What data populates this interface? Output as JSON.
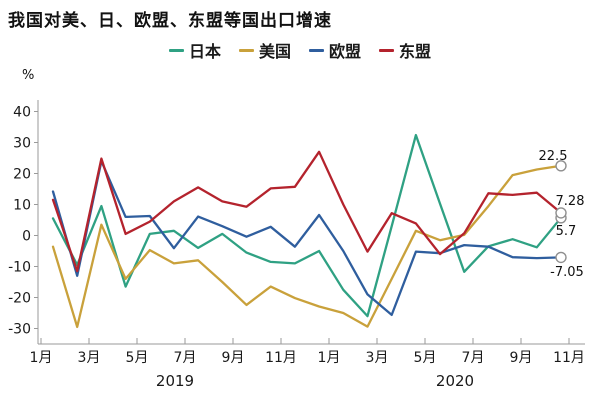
{
  "chart_data": {
    "type": "line",
    "title": "我国对美、日、欧盟、东盟等国出口增速",
    "ylabel": "%",
    "ylim": [
      -30,
      40
    ],
    "yticks": [
      40,
      30,
      20,
      10,
      0,
      -10,
      -20,
      -30
    ],
    "x_tick_labels": [
      "1月",
      "3月",
      "5月",
      "7月",
      "9月",
      "11月",
      "1月",
      "3月",
      "5月",
      "7月",
      "9月",
      "11月"
    ],
    "year_labels": [
      "2019",
      "2020"
    ],
    "categories": [
      "2019-1月",
      "2019-2月",
      "2019-3月",
      "2019-4月",
      "2019-5月",
      "2019-6月",
      "2019-7月",
      "2019-8月",
      "2019-9月",
      "2019-10月",
      "2019-11月",
      "2019-12月",
      "2020-1月",
      "2020-3月",
      "2020-4月",
      "2020-5月",
      "2020-6月",
      "2020-7月",
      "2020-8月",
      "2020-9月",
      "2020-10月",
      "2020-11月"
    ],
    "legend_position": "top",
    "grid": false,
    "series": [
      {
        "name": "日本",
        "name_en": "japan",
        "color": "#2fa183",
        "end_label": "5.7",
        "values": [
          5.5,
          -9.5,
          9.5,
          -16.5,
          0.5,
          1.5,
          -4,
          0.5,
          -5.5,
          -8.5,
          -9,
          -5,
          -17.5,
          -26,
          3,
          32.4,
          10.3,
          -11.7,
          -3.5,
          -1.2,
          -3.8,
          5.7
        ]
      },
      {
        "name": "美国",
        "name_en": "us",
        "color": "#c9a13b",
        "end_label": "22.5",
        "values": [
          -3.6,
          -29.5,
          3.5,
          -14,
          -4.7,
          -9,
          -8,
          -15,
          -22.4,
          -16.5,
          -20.2,
          -22.9,
          -25,
          -29.4,
          -14,
          1.5,
          -1.5,
          0.2,
          9.5,
          19.5,
          21.3,
          22.5
        ]
      },
      {
        "name": "欧盟",
        "name_en": "eu",
        "color": "#2f5e9e",
        "end_label": "-7.05",
        "values": [
          14.2,
          -13,
          24,
          6,
          6.3,
          -4.1,
          6.1,
          3,
          -0.4,
          2.8,
          -3.6,
          6.6,
          -5,
          -19,
          -25.6,
          -5.2,
          -5.7,
          -3.1,
          -3.6,
          -7,
          -7.3,
          -7.05
        ]
      },
      {
        "name": "东盟",
        "name_en": "asean",
        "color": "#b4232d",
        "end_label": "7.28",
        "values": [
          11.5,
          -11.5,
          24.8,
          0.5,
          4.5,
          11,
          15.5,
          11,
          9.3,
          15.2,
          15.7,
          27,
          10,
          -5.2,
          7.2,
          3.9,
          -6,
          0.7,
          13.6,
          13.1,
          13.8,
          7.28
        ]
      }
    ]
  }
}
